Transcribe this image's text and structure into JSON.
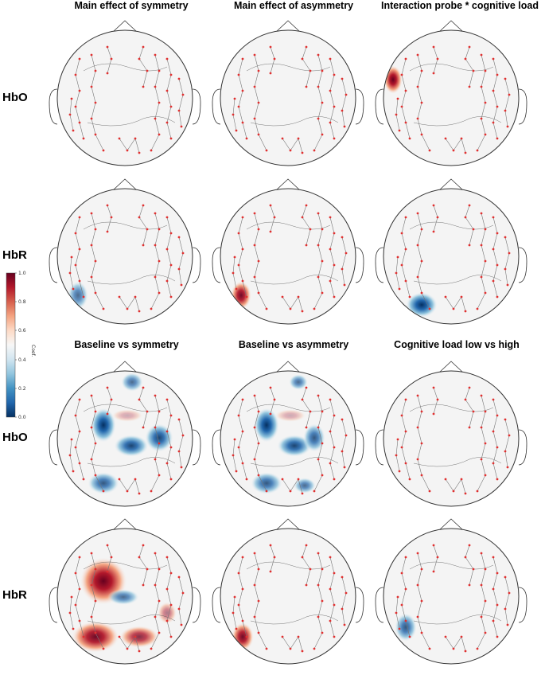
{
  "titles": {
    "main_symmetry": "Main effect of symmetry",
    "main_asymmetry": "Main effect of asymmetry",
    "interaction": "Interaction probe * cognitive load",
    "baseline_symmetry": "Baseline vs symmetry",
    "baseline_asymmetry": "Baseline vs asymmetry",
    "cog_load": "Cognitive load low vs high"
  },
  "row_labels": {
    "r1": "HbO",
    "r2": "HbR",
    "r3": "HbO",
    "r4": "HbR"
  },
  "colorbar": {
    "label": "Coef.",
    "ticks": [
      "1.0",
      "0.8",
      "0.6",
      "0.4",
      "0.2",
      "0.0"
    ],
    "colors": [
      "#67001f",
      "#b2182b",
      "#d6604d",
      "#f4a582",
      "#fddbc7",
      "#f7f7f7",
      "#d1e5f0",
      "#92c5de",
      "#4393c3",
      "#2166ac",
      "#053061"
    ]
  },
  "chart_data": {
    "type": "heatmap",
    "rows": [
      "HbO",
      "HbR",
      "HbO",
      "HbR"
    ],
    "columns": [
      "Main effect of symmetry",
      "Main effect of asymmetry",
      "Interaction probe * cognitive load",
      "Baseline vs symmetry",
      "Baseline vs asymmetry",
      "Cognitive load low vs high"
    ],
    "value_range": [
      0.0,
      1.0
    ]
  }
}
